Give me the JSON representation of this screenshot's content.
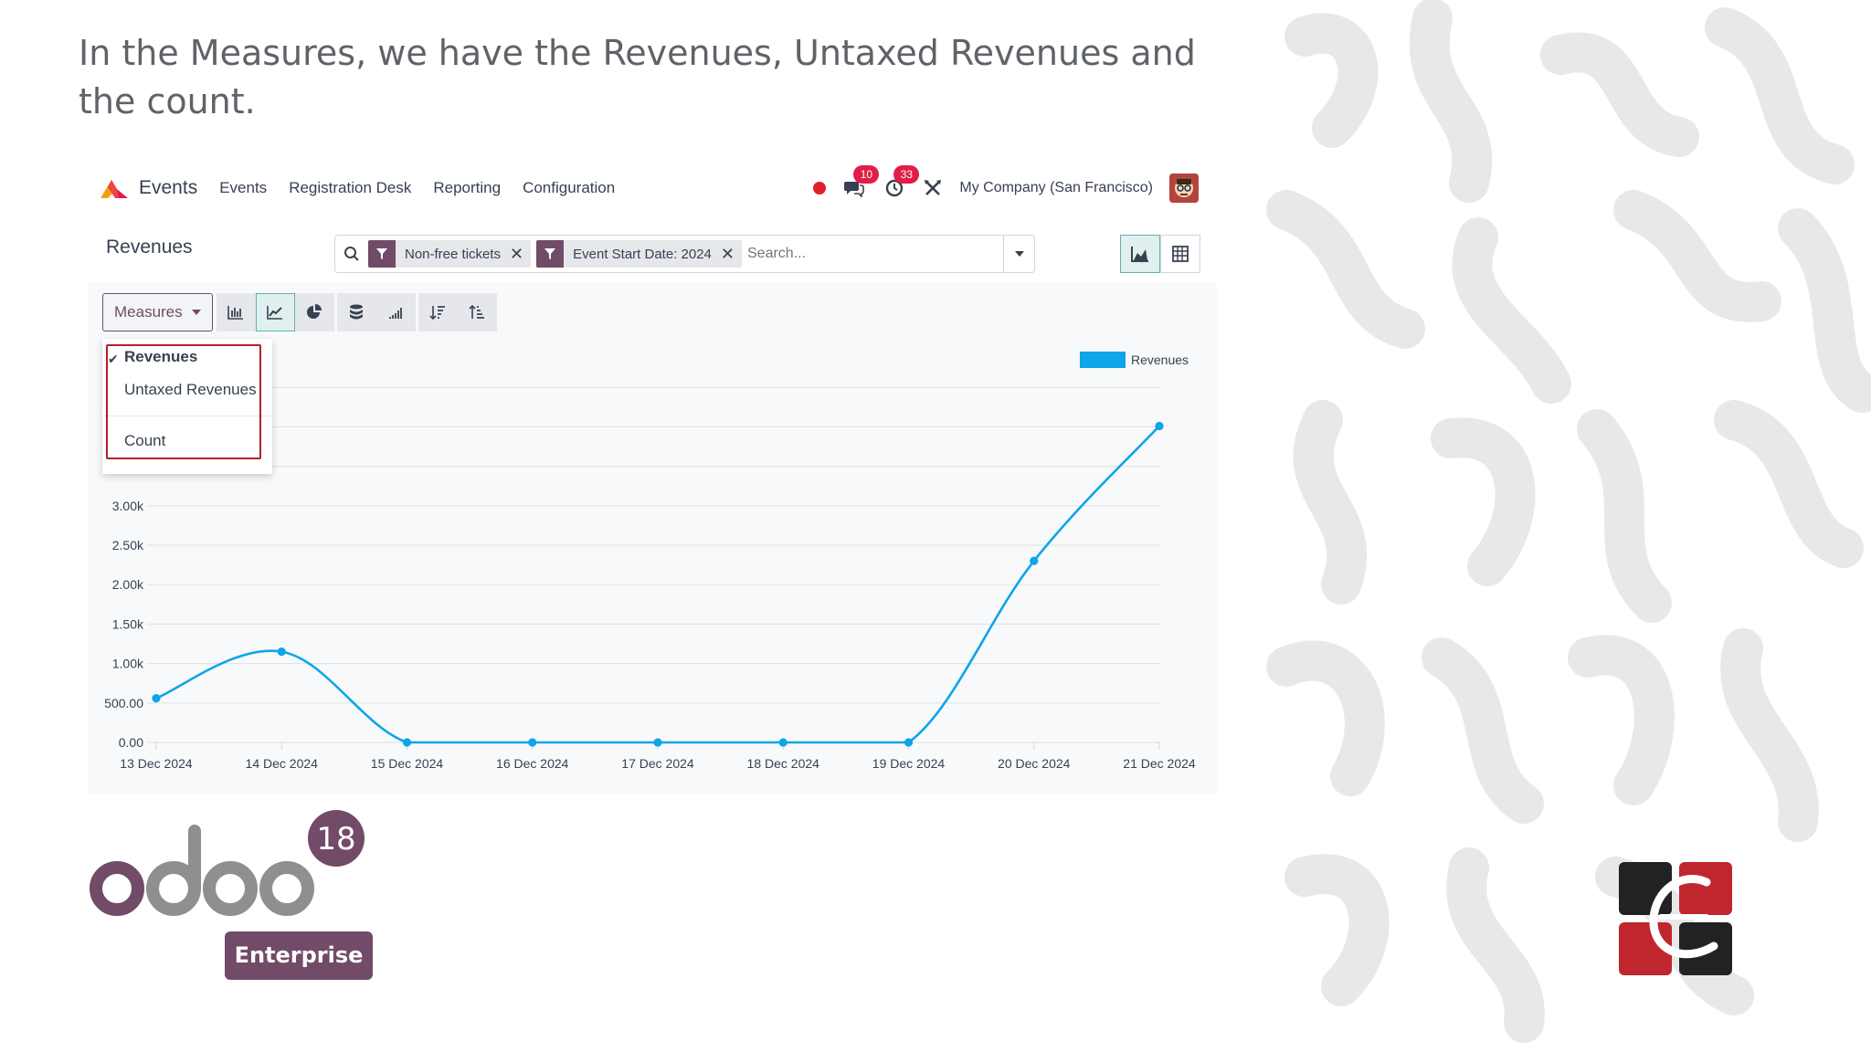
{
  "slide": {
    "text": "In the Measures, we have the Revenues, Untaxed Revenues and the count."
  },
  "navbar": {
    "app_name": "Events",
    "menu": [
      "Events",
      "Registration Desk",
      "Reporting",
      "Configuration"
    ],
    "messages_count": "10",
    "activities_count": "33",
    "company": "My Company (San Francisco)"
  },
  "control": {
    "title": "Revenues",
    "facets": [
      "Non-free tickets",
      "Event Start Date: 2024"
    ],
    "search_placeholder": "Search..."
  },
  "toolbar": {
    "measures_label": "Measures"
  },
  "measures_menu": {
    "items": [
      {
        "label": "Revenues",
        "checked": true
      },
      {
        "label": "Untaxed Revenues",
        "checked": false
      },
      {
        "label": "Count",
        "checked": false
      }
    ]
  },
  "legend": {
    "label": "Revenues",
    "color": "#0ea5e9"
  },
  "chart_data": {
    "type": "line",
    "categories": [
      "13 Dec 2024",
      "14 Dec 2024",
      "15 Dec 2024",
      "16 Dec 2024",
      "17 Dec 2024",
      "18 Dec 2024",
      "19 Dec 2024",
      "20 Dec 2024",
      "21 Dec 2024"
    ],
    "series": [
      {
        "name": "Revenues",
        "values": [
          560,
          1150,
          0,
          0,
          0,
          0,
          0,
          2300,
          4010
        ],
        "color": "#0ea5e9"
      }
    ],
    "y_ticks": [
      "0.00",
      "500.00",
      "1.00k",
      "1.50k",
      "2.00k",
      "2.50k",
      "3.00k"
    ],
    "ylim": [
      0,
      4500
    ],
    "grid": true,
    "legend": "top-right"
  },
  "brand": {
    "version": "18",
    "edition": "Enterprise"
  }
}
